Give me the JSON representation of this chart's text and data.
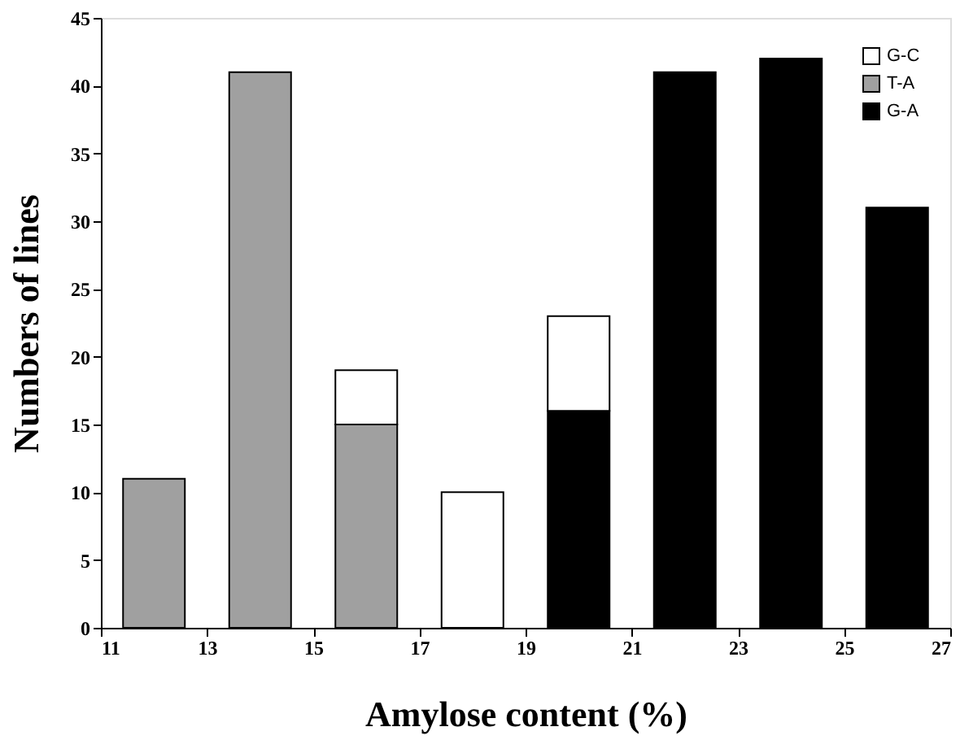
{
  "chart_data": {
    "type": "bar",
    "stacked": true,
    "xlabel": "Amylose content (%)",
    "ylabel": "Numbers of  lines",
    "x": [
      12,
      14,
      16,
      18,
      20,
      22,
      24,
      26
    ],
    "series": [
      {
        "name": "G-A",
        "color": "#000000",
        "values": [
          null,
          null,
          null,
          null,
          16,
          41,
          42,
          31
        ]
      },
      {
        "name": "T-A",
        "color": "#a0a0a0",
        "values": [
          11,
          41,
          15,
          null,
          null,
          null,
          null,
          null
        ]
      },
      {
        "name": "G-C",
        "color": "#ffffff",
        "values": [
          null,
          null,
          4,
          10,
          7,
          null,
          null,
          null
        ]
      }
    ],
    "xlim": [
      11,
      27
    ],
    "xticks": [
      11,
      13,
      15,
      17,
      19,
      21,
      23,
      25,
      27
    ],
    "ylim": [
      0,
      45
    ],
    "yticks": [
      0,
      5,
      10,
      15,
      20,
      25,
      30,
      35,
      40,
      45
    ],
    "grid": false,
    "legend": "top right"
  }
}
